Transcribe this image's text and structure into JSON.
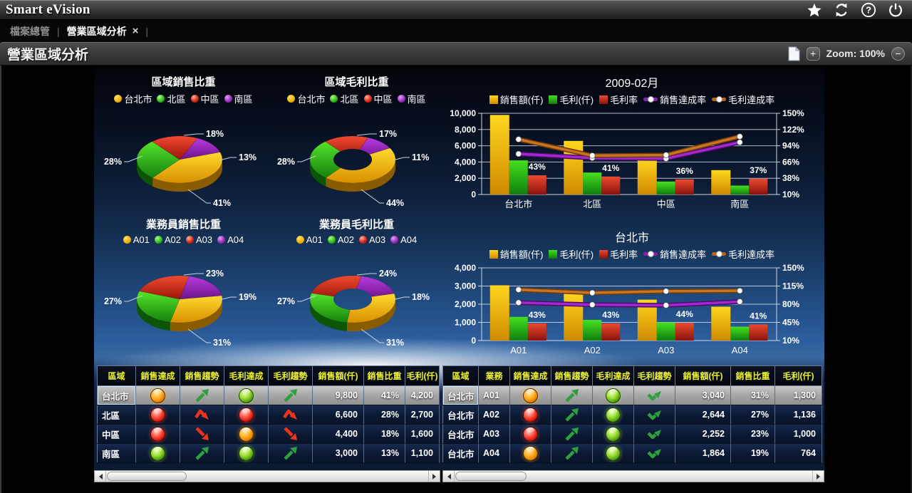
{
  "app": {
    "title": "Smart eVision"
  },
  "tabs": {
    "inactive": "檔案總管",
    "active": "營業區域分析",
    "close": "×",
    "separator": "|"
  },
  "toolbar": {
    "page_title": "營業區域分析",
    "zoom_in": "+",
    "zoom_label": "Zoom: 100%",
    "zoom_out": "−"
  },
  "colors": {
    "gold": "#f2b50c",
    "green": "#2fbd1b",
    "red": "#d62a18",
    "purple": "#9b2fc0",
    "line_purple": "#a428d0",
    "line_orange": "#c87420",
    "table_header_text": "#eef233",
    "status_orange": "#ff9d1e",
    "status_red": "#e02010",
    "status_green": "#7ec830"
  },
  "chart_data": [
    {
      "type": "pie",
      "title": "區域銷售比重",
      "unit": "%",
      "legend": [
        "台北市",
        "北區",
        "中區",
        "南區"
      ],
      "values": [
        41,
        28,
        18,
        13
      ],
      "colors": [
        "#f2b50c",
        "#2fbd1b",
        "#d62a18",
        "#9b2fc0"
      ],
      "donut": false
    },
    {
      "type": "pie",
      "title": "區域毛利比重",
      "unit": "%",
      "legend": [
        "台北市",
        "北區",
        "中區",
        "南區"
      ],
      "values": [
        44,
        28,
        17,
        11
      ],
      "colors": [
        "#f2b50c",
        "#2fbd1b",
        "#d62a18",
        "#9b2fc0"
      ],
      "donut": true
    },
    {
      "type": "pie",
      "title": "業務員銷售比重",
      "unit": "%",
      "legend": [
        "A01",
        "A02",
        "A03",
        "A04"
      ],
      "values": [
        31,
        27,
        23,
        19
      ],
      "colors": [
        "#f2b50c",
        "#2fbd1b",
        "#d62a18",
        "#9b2fc0"
      ],
      "donut": false
    },
    {
      "type": "pie",
      "title": "業務員毛利比重",
      "unit": "%",
      "legend": [
        "A01",
        "A02",
        "A03",
        "A04"
      ],
      "values": [
        31,
        27,
        24,
        18
      ],
      "colors": [
        "#f2b50c",
        "#2fbd1b",
        "#d62a18",
        "#9b2fc0"
      ],
      "donut": true
    },
    {
      "type": "bar",
      "title": "2009-02月",
      "categories": [
        "台北市",
        "北區",
        "中區",
        "南區"
      ],
      "series": [
        {
          "name": "銷售額(仟)",
          "kind": "bar",
          "axis": "left",
          "color": "#f2b50c",
          "values": [
            9800,
            6600,
            4400,
            3000
          ]
        },
        {
          "name": "毛利(仟)",
          "kind": "bar",
          "axis": "left",
          "color": "#2fbd1b",
          "values": [
            4200,
            2700,
            1600,
            1100
          ]
        },
        {
          "name": "毛利率",
          "kind": "bar",
          "axis": "right",
          "color": "#d62a18",
          "values": [
            43,
            41,
            36,
            37
          ],
          "data_labels": [
            "43%",
            "41%",
            "36%",
            "37%"
          ]
        },
        {
          "name": "銷售達成率",
          "kind": "line",
          "axis": "right",
          "color": "#a428d0",
          "values": [
            80,
            73,
            72,
            100
          ]
        },
        {
          "name": "毛利達成率",
          "kind": "line",
          "axis": "right",
          "color": "#c87420",
          "values": [
            105,
            77,
            78,
            110
          ]
        }
      ],
      "left_axis": {
        "min": 0,
        "max": 10000,
        "ticks": [
          "10,000",
          "8,000",
          "6,000",
          "4,000",
          "2,000",
          "0"
        ]
      },
      "right_axis": {
        "min": 10,
        "max": 150,
        "ticks": [
          "150%",
          "122%",
          "94%",
          "66%",
          "38%",
          "10%"
        ]
      },
      "grid": true,
      "legend_position": "top"
    },
    {
      "type": "bar",
      "title": "台北市",
      "categories": [
        "A01",
        "A02",
        "A03",
        "A04"
      ],
      "series": [
        {
          "name": "銷售額(仟)",
          "kind": "bar",
          "axis": "left",
          "color": "#f2b50c",
          "values": [
            3040,
            2644,
            2252,
            1864
          ]
        },
        {
          "name": "毛利(仟)",
          "kind": "bar",
          "axis": "left",
          "color": "#2fbd1b",
          "values": [
            1300,
            1136,
            1000,
            764
          ]
        },
        {
          "name": "毛利率",
          "kind": "bar",
          "axis": "right",
          "color": "#d62a18",
          "values": [
            43,
            43,
            44,
            41
          ],
          "data_labels": [
            "43%",
            "43%",
            "44%",
            "41%"
          ]
        },
        {
          "name": "銷售達成率",
          "kind": "line",
          "axis": "right",
          "color": "#a428d0",
          "values": [
            83,
            79,
            78,
            85
          ]
        },
        {
          "name": "毛利達成率",
          "kind": "line",
          "axis": "right",
          "color": "#c87420",
          "values": [
            108,
            102,
            105,
            106
          ]
        }
      ],
      "left_axis": {
        "min": 0,
        "max": 4000,
        "ticks": [
          "4,000",
          "3,000",
          "2,000",
          "1,000",
          "0"
        ]
      },
      "right_axis": {
        "min": 10,
        "max": 150,
        "ticks": [
          "150%",
          "115%",
          "80%",
          "45%",
          "10%"
        ]
      },
      "grid": true,
      "legend_position": "top"
    }
  ],
  "tables": {
    "left": {
      "headers": [
        "區域",
        "銷售達成",
        "銷售趨勢",
        "毛利達成",
        "毛利趨勢",
        "銷售額(仟)",
        "銷售比重",
        "毛利(仟)"
      ],
      "rows": [
        {
          "region": "台北市",
          "sales_light": "orange",
          "sales_trend": "up-green",
          "profit_light": "green",
          "profit_trend": "up-green",
          "sales": "9,800",
          "share": "41%",
          "profit": "4,200",
          "selected": true
        },
        {
          "region": "北區",
          "sales_light": "red",
          "sales_trend": "peak-red",
          "profit_light": "red",
          "profit_trend": "peak-red",
          "sales": "6,600",
          "share": "28%",
          "profit": "2,700",
          "selected": false
        },
        {
          "region": "中區",
          "sales_light": "red",
          "sales_trend": "down-red",
          "profit_light": "orange",
          "profit_trend": "down-red",
          "sales": "4,400",
          "share": "18%",
          "profit": "1,600",
          "selected": false
        },
        {
          "region": "南區",
          "sales_light": "green",
          "sales_trend": "up-green",
          "profit_light": "green",
          "profit_trend": "up-green",
          "sales": "3,000",
          "share": "13%",
          "profit": "1,100",
          "selected": false
        }
      ]
    },
    "right": {
      "headers": [
        "區域",
        "業務",
        "銷售達成",
        "銷售趨勢",
        "毛利達成",
        "毛利趨勢",
        "銷售額(仟)",
        "銷售比重",
        "毛利(仟)"
      ],
      "rows": [
        {
          "region": "台北市",
          "agent": "A01",
          "sales_light": "orange",
          "sales_trend": "up-green",
          "profit_light": "green",
          "profit_trend": "check-green",
          "sales": "3,040",
          "share": "31%",
          "profit": "1,300",
          "selected": true
        },
        {
          "region": "台北市",
          "agent": "A02",
          "sales_light": "red",
          "sales_trend": "up-green",
          "profit_light": "green",
          "profit_trend": "check-green",
          "sales": "2,644",
          "share": "27%",
          "profit": "1,136",
          "selected": false
        },
        {
          "region": "台北市",
          "agent": "A03",
          "sales_light": "red",
          "sales_trend": "up-green",
          "profit_light": "green",
          "profit_trend": "check-green",
          "sales": "2,252",
          "share": "23%",
          "profit": "1,000",
          "selected": false
        },
        {
          "region": "台北市",
          "agent": "A04",
          "sales_light": "orange",
          "sales_trend": "up-green",
          "profit_light": "green",
          "profit_trend": "check-green",
          "sales": "1,864",
          "share": "19%",
          "profit": "764",
          "selected": false
        }
      ]
    }
  }
}
